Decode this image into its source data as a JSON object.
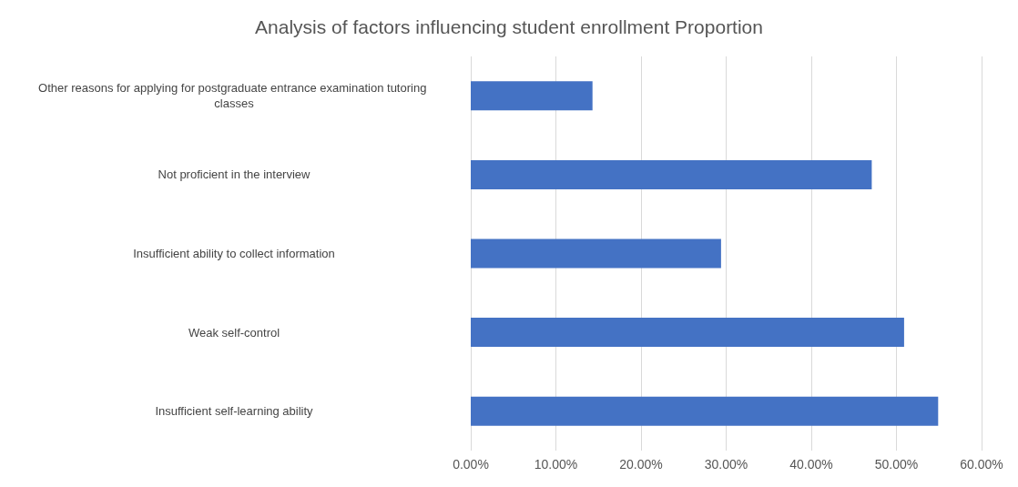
{
  "chart_data": {
    "type": "bar",
    "orientation": "horizontal",
    "title": "Analysis of factors influencing student enrollment Proportion",
    "categories": [
      "Other reasons for applying for postgraduate entrance examination tutoring classes",
      "Not proficient in the interview",
      "Insufficient ability to collect information",
      "Weak self-control",
      "Insufficient self-learning ability"
    ],
    "values": [
      14.3,
      47.1,
      29.4,
      50.9,
      54.9
    ],
    "color": "#4472c4",
    "xlim": [
      0,
      60
    ],
    "xticks": [
      {
        "value": 0,
        "label": "0.00%"
      },
      {
        "value": 10,
        "label": "10.00%"
      },
      {
        "value": 20,
        "label": "20.00%"
      },
      {
        "value": 30,
        "label": "30.00%"
      },
      {
        "value": 40,
        "label": "40.00%"
      },
      {
        "value": 50,
        "label": "50.00%"
      },
      {
        "value": 60,
        "label": "60.00%"
      }
    ],
    "grid": "x"
  }
}
